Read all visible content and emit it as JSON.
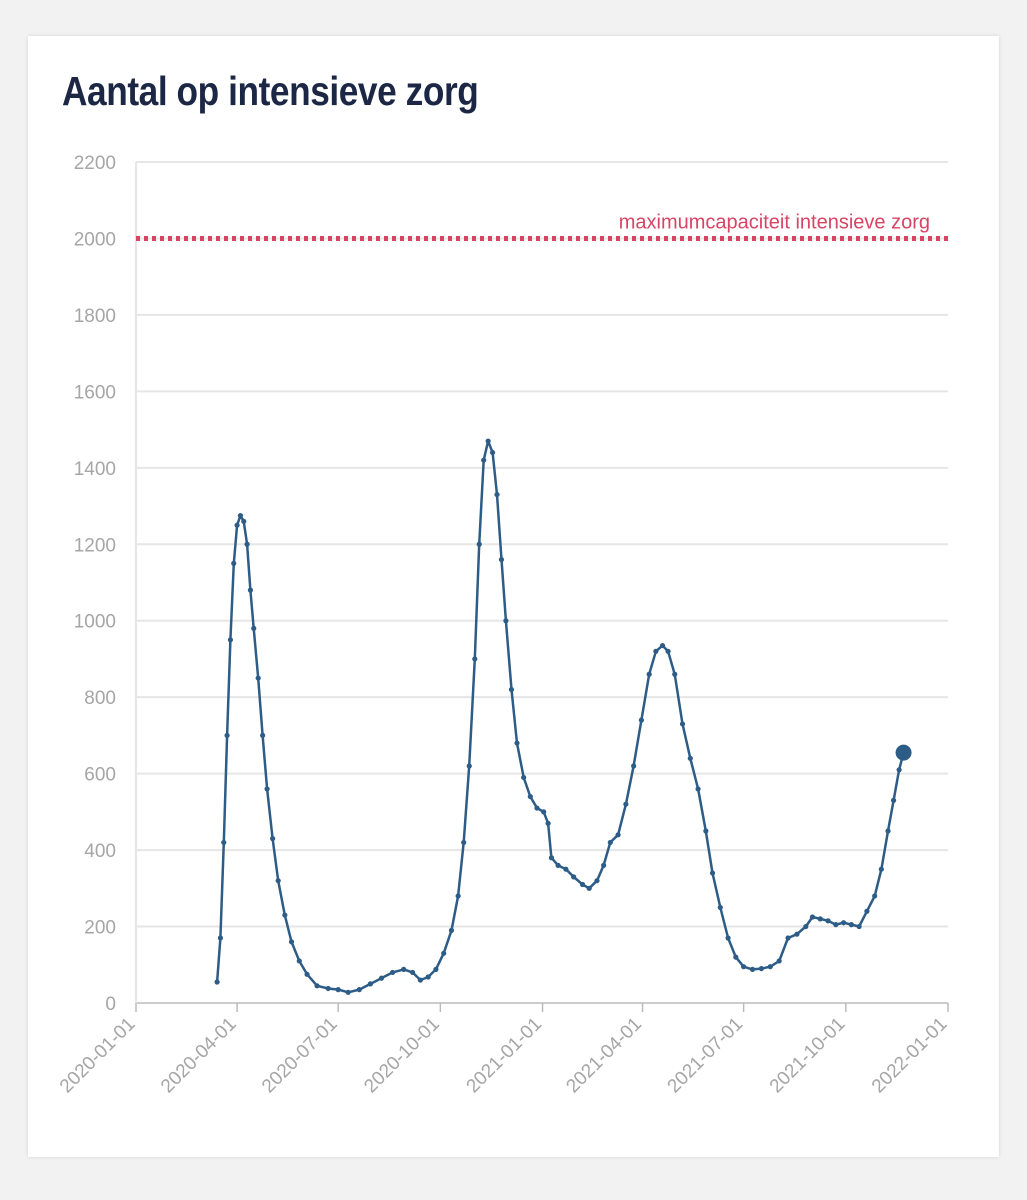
{
  "chart_data": {
    "type": "line",
    "title": "Aantal op intensieve zorg",
    "xlabel": "",
    "ylabel": "",
    "xlim": [
      "2020-01-01",
      "2022-01-01"
    ],
    "ylim": [
      0,
      2200
    ],
    "grid": "horizontal",
    "legend": "none",
    "y_ticks": [
      "0",
      "200",
      "400",
      "600",
      "800",
      "1000",
      "1200",
      "1400",
      "1600",
      "1800",
      "2000",
      "2200"
    ],
    "x_ticks": [
      "2020-01-01",
      "2020-04-01",
      "2020-07-01",
      "2020-10-01",
      "2021-01-01",
      "2021-04-01",
      "2021-07-01",
      "2021-10-01",
      "2022-01-01"
    ],
    "reference_line": {
      "value": 2000,
      "label": "maximumcapaciteit intensieve zorg",
      "color": "#d94464",
      "style": "dotted"
    },
    "series": [
      {
        "color": "#2d5c87",
        "points": [
          [
            "2020-03-14",
            55
          ],
          [
            "2020-03-17",
            170
          ],
          [
            "2020-03-20",
            420
          ],
          [
            "2020-03-23",
            700
          ],
          [
            "2020-03-26",
            950
          ],
          [
            "2020-03-29",
            1150
          ],
          [
            "2020-04-01",
            1250
          ],
          [
            "2020-04-04",
            1275
          ],
          [
            "2020-04-07",
            1260
          ],
          [
            "2020-04-10",
            1200
          ],
          [
            "2020-04-13",
            1080
          ],
          [
            "2020-04-16",
            980
          ],
          [
            "2020-04-20",
            850
          ],
          [
            "2020-04-24",
            700
          ],
          [
            "2020-04-28",
            560
          ],
          [
            "2020-05-03",
            430
          ],
          [
            "2020-05-08",
            320
          ],
          [
            "2020-05-14",
            230
          ],
          [
            "2020-05-20",
            160
          ],
          [
            "2020-05-27",
            110
          ],
          [
            "2020-06-03",
            75
          ],
          [
            "2020-06-12",
            45
          ],
          [
            "2020-06-22",
            38
          ],
          [
            "2020-07-01",
            35
          ],
          [
            "2020-07-10",
            28
          ],
          [
            "2020-07-20",
            35
          ],
          [
            "2020-07-30",
            50
          ],
          [
            "2020-08-09",
            65
          ],
          [
            "2020-08-19",
            80
          ],
          [
            "2020-08-29",
            88
          ],
          [
            "2020-09-06",
            80
          ],
          [
            "2020-09-13",
            60
          ],
          [
            "2020-09-20",
            68
          ],
          [
            "2020-09-27",
            88
          ],
          [
            "2020-10-04",
            130
          ],
          [
            "2020-10-11",
            190
          ],
          [
            "2020-10-17",
            280
          ],
          [
            "2020-10-22",
            420
          ],
          [
            "2020-10-27",
            620
          ],
          [
            "2020-11-01",
            900
          ],
          [
            "2020-11-05",
            1200
          ],
          [
            "2020-11-09",
            1420
          ],
          [
            "2020-11-13",
            1470
          ],
          [
            "2020-11-17",
            1440
          ],
          [
            "2020-11-21",
            1330
          ],
          [
            "2020-11-25",
            1160
          ],
          [
            "2020-11-29",
            1000
          ],
          [
            "2020-12-04",
            820
          ],
          [
            "2020-12-09",
            680
          ],
          [
            "2020-12-15",
            590
          ],
          [
            "2020-12-21",
            540
          ],
          [
            "2020-12-27",
            510
          ],
          [
            "2021-01-02",
            500
          ],
          [
            "2021-01-06",
            470
          ],
          [
            "2021-01-09",
            380
          ],
          [
            "2021-01-15",
            360
          ],
          [
            "2021-01-22",
            350
          ],
          [
            "2021-01-29",
            330
          ],
          [
            "2021-02-06",
            310
          ],
          [
            "2021-02-12",
            300
          ],
          [
            "2021-02-19",
            320
          ],
          [
            "2021-02-25",
            360
          ],
          [
            "2021-03-03",
            420
          ],
          [
            "2021-03-10",
            440
          ],
          [
            "2021-03-17",
            520
          ],
          [
            "2021-03-24",
            620
          ],
          [
            "2021-03-31",
            740
          ],
          [
            "2021-04-07",
            860
          ],
          [
            "2021-04-13",
            920
          ],
          [
            "2021-04-19",
            935
          ],
          [
            "2021-04-24",
            920
          ],
          [
            "2021-04-30",
            860
          ],
          [
            "2021-05-07",
            730
          ],
          [
            "2021-05-14",
            640
          ],
          [
            "2021-05-21",
            560
          ],
          [
            "2021-05-28",
            450
          ],
          [
            "2021-06-03",
            340
          ],
          [
            "2021-06-10",
            250
          ],
          [
            "2021-06-17",
            170
          ],
          [
            "2021-06-24",
            120
          ],
          [
            "2021-07-01",
            95
          ],
          [
            "2021-07-09",
            88
          ],
          [
            "2021-07-17",
            90
          ],
          [
            "2021-07-25",
            95
          ],
          [
            "2021-08-02",
            110
          ],
          [
            "2021-08-10",
            170
          ],
          [
            "2021-08-18",
            180
          ],
          [
            "2021-08-26",
            200
          ],
          [
            "2021-09-01",
            225
          ],
          [
            "2021-09-08",
            220
          ],
          [
            "2021-09-15",
            215
          ],
          [
            "2021-09-22",
            205
          ],
          [
            "2021-09-29",
            210
          ],
          [
            "2021-10-06",
            205
          ],
          [
            "2021-10-13",
            200
          ],
          [
            "2021-10-20",
            240
          ],
          [
            "2021-10-27",
            280
          ],
          [
            "2021-11-02",
            350
          ],
          [
            "2021-11-08",
            450
          ],
          [
            "2021-11-13",
            530
          ],
          [
            "2021-11-18",
            610
          ],
          [
            "2021-11-22",
            655
          ]
        ],
        "last_point": [
          "2021-11-22",
          655
        ]
      }
    ]
  }
}
